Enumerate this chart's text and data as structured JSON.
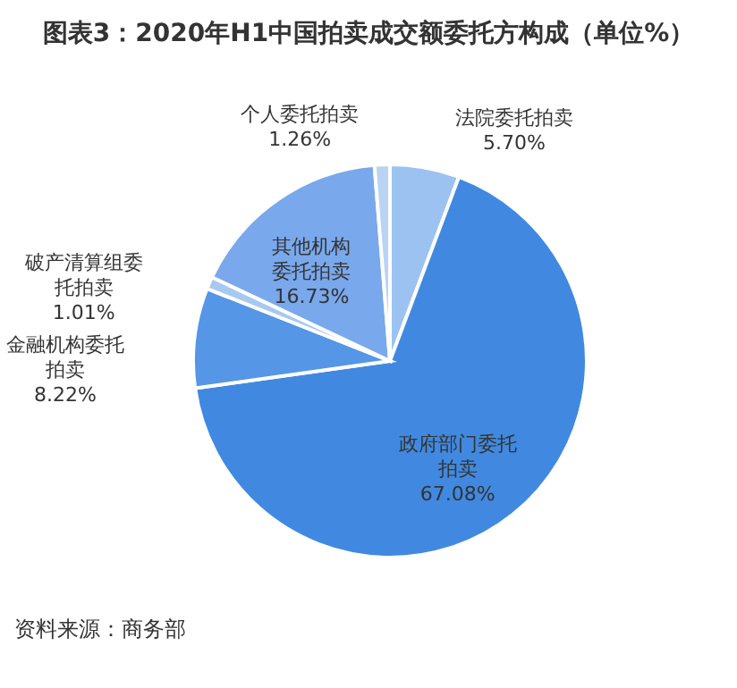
{
  "chart_data": {
    "type": "pie",
    "title": "图表3：2020年H1中国拍卖成交额委托方构成（单位%）",
    "categories": [
      "法院委托拍卖",
      "政府部门委托拍卖",
      "金融机构委托拍卖",
      "破产清算组委托拍卖",
      "其他机构委托拍卖",
      "个人委托拍卖"
    ],
    "values": [
      5.7,
      67.08,
      8.22,
      1.01,
      16.73,
      1.26
    ],
    "value_labels": [
      "5.70%",
      "67.08%",
      "8.22%",
      "1.01%",
      "16.73%",
      "1.26%"
    ],
    "colors": [
      "#9cc2f2",
      "#4189e0",
      "#5596e6",
      "#a8c8f0",
      "#79a8ec",
      "#b9d3f4"
    ],
    "annotations": [
      "资料来源：商务部"
    ]
  }
}
